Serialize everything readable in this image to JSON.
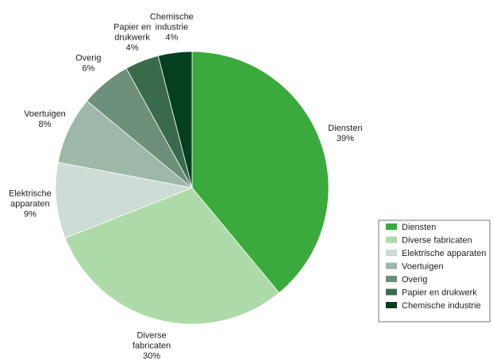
{
  "chart_data": {
    "type": "pie",
    "title": "",
    "legend_position": "right",
    "slices": [
      {
        "label": "Diensten",
        "label_lines": [
          "Diensten"
        ],
        "value_label": "39%",
        "value": 39,
        "color": "#3aaa3c"
      },
      {
        "label": "Diverse fabricaten",
        "label_lines": [
          "Diverse",
          "fabricaten"
        ],
        "value_label": "30%",
        "value": 30,
        "color": "#acdaa8"
      },
      {
        "label": "Elektrische apparaten",
        "label_lines": [
          "Elektrische",
          "apparaten"
        ],
        "value_label": "9%",
        "value": 9,
        "color": "#cddcd4"
      },
      {
        "label": "Voertuigen",
        "label_lines": [
          "Voertuigen"
        ],
        "value_label": "8%",
        "value": 8,
        "color": "#9db8a8"
      },
      {
        "label": "Overig",
        "label_lines": [
          "Overig"
        ],
        "value_label": "6%",
        "value": 6,
        "color": "#6e8f7a"
      },
      {
        "label": "Papier en drukwerk",
        "label_lines": [
          "Papier en",
          "drukwerk"
        ],
        "value_label": "4%",
        "value": 4,
        "color": "#3a6a4c"
      },
      {
        "label": "Chemische industrie",
        "label_lines": [
          "Chemische",
          "industrie"
        ],
        "value_label": "4%",
        "value": 4,
        "color": "#053f20"
      }
    ]
  }
}
